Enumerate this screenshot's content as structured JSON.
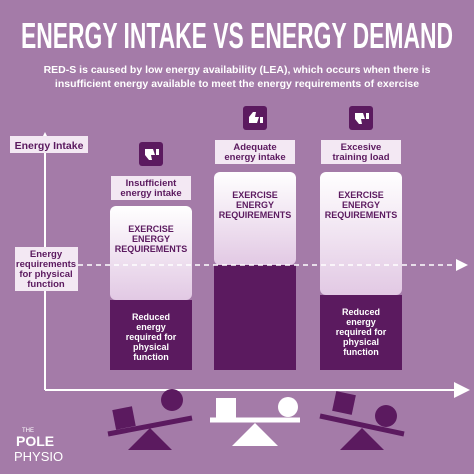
{
  "header": {
    "title": "ENERGY INTAKE VS ENERGY DEMAND",
    "subtitle_lines": [
      "RED-S is caused by low energy availability (LEA), which occurs when there is",
      "insufficient energy available to meet the energy requirements of exercise"
    ]
  },
  "axes": {
    "y_label": "Energy Intake",
    "threshold_label_lines": [
      "Energy",
      "requirements",
      "for physical",
      "function"
    ]
  },
  "columns": [
    {
      "label_lines": [
        "Insufficient",
        "energy intake"
      ],
      "top_lines": [
        "EXERCISE",
        "ENERGY",
        "REQUIREMENTS"
      ],
      "bottom_lines": [
        "Reduced",
        "energy",
        "required for",
        "physical",
        "function"
      ]
    },
    {
      "label_lines": [
        "Adequate",
        "energy intake"
      ],
      "top_lines": [
        "EXERCISE",
        "ENERGY",
        "REQUIREMENTS"
      ],
      "bottom_lines": []
    },
    {
      "label_lines": [
        "Excesive",
        "training load"
      ],
      "top_lines": [
        "EXERCISE",
        "ENERGY",
        "REQUIREMENTS"
      ],
      "bottom_lines": [
        "Reduced",
        "energy",
        "required for",
        "physical",
        "function"
      ]
    }
  ],
  "logo": {
    "lines": [
      "THE",
      "POLE",
      "PHYSIO"
    ]
  }
}
